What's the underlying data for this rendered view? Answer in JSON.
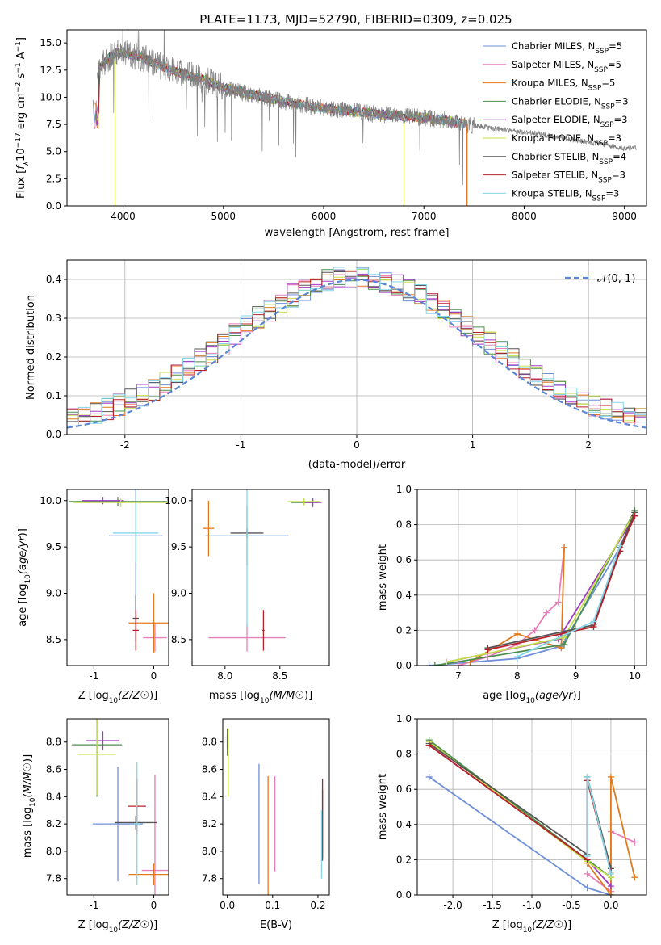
{
  "title": "PLATE=1173, MJD=52790, FIBERID=0309, z=0.025",
  "colors": {
    "Chabrier MILES": "#6f8fd8",
    "Salpeter MILES": "#e87fb8",
    "Kroupa MILES": "#e07a1e",
    "Chabrier ELODIE": "#4c8f4c",
    "Salpeter ELODIE": "#a23ac4",
    "Kroupa ELODIE": "#c6e04a",
    "Chabrier STELIB": "#555555",
    "Salpeter STELIB": "#b5202a",
    "Kroupa STELIB": "#86d6e8",
    "gauss": "#5b86d6",
    "data": "#808080"
  },
  "chart_data": [
    {
      "type": "line",
      "xlabel": "wavelength [Angstrom, rest frame]",
      "ylabel": "Flux [f_λ 10^-17 erg cm^-2 s^-1 A^-1]",
      "xlim": [
        3440,
        9220
      ],
      "ylim": [
        0,
        16.2
      ],
      "xticks": [
        4000,
        5000,
        6000,
        7000,
        8000,
        9000
      ],
      "yticks": [
        0.0,
        2.5,
        5.0,
        7.5,
        10.0,
        12.5,
        15.0
      ],
      "legend": [
        {
          "label": "Chabrier MILES, N",
          "sub": "SSP",
          "suffix": "=5"
        },
        {
          "label": "Salpeter MILES, N",
          "sub": "SSP",
          "suffix": "=5"
        },
        {
          "label": "Kroupa MILES, N",
          "sub": "SSP",
          "suffix": "=5"
        },
        {
          "label": "Chabrier ELODIE, N",
          "sub": "SSP",
          "suffix": "=3"
        },
        {
          "label": "Salpeter ELODIE, N",
          "sub": "SSP",
          "suffix": "=3"
        },
        {
          "label": "Kroupa ELODIE, N",
          "sub": "SSP",
          "suffix": "=3"
        },
        {
          "label": "Chabrier STELIB, N",
          "sub": "SSP",
          "suffix": "=4"
        },
        {
          "label": "Salpeter STELIB, N",
          "sub": "SSP",
          "suffix": "=3"
        },
        {
          "label": "Kroupa STELIB, N",
          "sub": "SSP",
          "suffix": "=3"
        }
      ],
      "continuum": [
        [
          3750,
          12.6
        ],
        [
          3850,
          13.6
        ],
        [
          3950,
          14.2
        ],
        [
          4050,
          14.0
        ],
        [
          4200,
          13.6
        ],
        [
          4400,
          12.8
        ],
        [
          4600,
          12.2
        ],
        [
          4800,
          11.6
        ],
        [
          5000,
          10.9
        ],
        [
          5200,
          10.4
        ],
        [
          5500,
          9.8
        ],
        [
          5800,
          9.3
        ],
        [
          6000,
          9.0
        ],
        [
          6300,
          8.7
        ],
        [
          6600,
          8.4
        ],
        [
          6900,
          8.2
        ],
        [
          7200,
          7.9
        ],
        [
          7500,
          7.4
        ],
        [
          7800,
          7.0
        ],
        [
          8100,
          6.7
        ],
        [
          8400,
          6.2
        ],
        [
          8700,
          5.8
        ],
        [
          9000,
          5.3
        ]
      ],
      "model_range": [
        3700,
        7430
      ],
      "data_range": [
        3740,
        9120
      ]
    },
    {
      "type": "histogram",
      "xlabel": "(data-model)/error",
      "ylabel": "Normed distribution",
      "xlim": [
        -2.5,
        2.5
      ],
      "ylim": [
        0,
        0.45
      ],
      "xticks": [
        -2,
        -1,
        0,
        1,
        2
      ],
      "yticks": [
        0.0,
        0.1,
        0.2,
        0.3,
        0.4
      ],
      "grid": true,
      "legend": "𝒩(0, 1)",
      "bins": 50,
      "gaussian": {
        "mu": 0,
        "sigma": 1
      }
    },
    {
      "type": "errorbar",
      "xlabel": "Z [log10(Z/Z☉)]",
      "ylabel": "age  [log10(age/yr)]",
      "xlim": [
        -1.45,
        0.25
      ],
      "ylim": [
        8.22,
        10.12
      ],
      "xticks": [
        -1,
        0
      ],
      "yticks": [
        8.5,
        9.0,
        9.5,
        10.0
      ],
      "points": [
        {
          "model": "Chabrier MILES",
          "x": -0.3,
          "y": 9.62,
          "xerr": 0.45,
          "yerr": 0.98
        },
        {
          "model": "Salpeter MILES",
          "x": 0.02,
          "y": 8.52,
          "xerr": 0.2,
          "yerr": 0.15
        },
        {
          "model": "Kroupa MILES",
          "x": 0.0,
          "y": 8.68,
          "xerr": 0.42,
          "yerr": 0.32
        },
        {
          "model": "Chabrier ELODIE",
          "x": -0.6,
          "y": 9.99,
          "xerr": 0.82,
          "yerr": 0.05
        },
        {
          "model": "Salpeter ELODIE",
          "x": -0.85,
          "y": 10.0,
          "xerr": 0.35,
          "yerr": 0.04
        },
        {
          "model": "Kroupa ELODIE",
          "x": -0.55,
          "y": 9.98,
          "xerr": 0.8,
          "yerr": 0.05
        },
        {
          "model": "Chabrier STELIB",
          "x": -0.3,
          "y": 8.73,
          "xerr": 0.05,
          "yerr": 0.25
        },
        {
          "model": "Salpeter STELIB",
          "x": -0.3,
          "y": 8.6,
          "xerr": 0.05,
          "yerr": 0.22
        },
        {
          "model": "Kroupa STELIB",
          "x": -0.3,
          "y": 9.65,
          "xerr": 0.38,
          "yerr": 0.32
        }
      ]
    },
    {
      "type": "errorbar",
      "xlabel": "mass [log10(M/M☉)]",
      "ylabel": "",
      "xlim": [
        7.7,
        8.95
      ],
      "ylim": [
        8.22,
        10.12
      ],
      "xticks": [
        8.0,
        8.5
      ],
      "yticks": [
        8.5,
        9.0,
        9.5,
        10.0
      ],
      "points": [
        {
          "model": "Chabrier MILES",
          "x": 8.2,
          "y": 9.62,
          "xerr": 0.38,
          "yerr": 0.32
        },
        {
          "model": "Salpeter MILES",
          "x": 8.2,
          "y": 8.52,
          "xerr": 0.35,
          "yerr": 0.15
        },
        {
          "model": "Kroupa MILES",
          "x": 7.85,
          "y": 9.7,
          "xerr": 0.05,
          "yerr": 0.3
        },
        {
          "model": "Chabrier ELODIE",
          "x": 8.72,
          "y": 9.98,
          "xerr": 0.12,
          "yerr": 0.03
        },
        {
          "model": "Salpeter ELODIE",
          "x": 8.8,
          "y": 9.98,
          "xerr": 0.08,
          "yerr": 0.05
        },
        {
          "model": "Kroupa ELODIE",
          "x": 8.72,
          "y": 9.99,
          "xerr": 0.15,
          "yerr": 0.04
        },
        {
          "model": "Chabrier STELIB",
          "x": 8.2,
          "y": 9.65,
          "xerr": 0.15,
          "yerr": 0.05
        },
        {
          "model": "Salpeter STELIB",
          "x": 8.35,
          "y": 8.6,
          "xerr": 0.01,
          "yerr": 0.22
        },
        {
          "model": "Kroupa STELIB",
          "x": 8.2,
          "y": 9.62,
          "xerr": 0.02,
          "yerr": 0.98
        }
      ]
    },
    {
      "type": "line",
      "xlabel": "age  [log10(age/yr)]",
      "ylabel": "mass weight",
      "xlim": [
        6.3,
        10.2
      ],
      "ylim": [
        0,
        1.0
      ],
      "xticks": [
        7,
        8,
        9,
        10
      ],
      "yticks": [
        0.0,
        0.2,
        0.4,
        0.6,
        0.8,
        1.0
      ],
      "grid": true,
      "series": [
        {
          "model": "Chabrier MILES",
          "x": [
            6.5,
            8.0,
            8.75,
            9.75,
            10.0
          ],
          "y": [
            0.0,
            0.04,
            0.11,
            0.67,
            0.87
          ]
        },
        {
          "model": "Salpeter MILES",
          "x": [
            7.0,
            7.5,
            8.0,
            8.3,
            8.5,
            8.7,
            8.8
          ],
          "y": [
            0.0,
            0.05,
            0.12,
            0.2,
            0.3,
            0.36,
            0.67
          ]
        },
        {
          "model": "Kroupa MILES",
          "x": [
            7.2,
            8.0,
            8.75,
            8.8
          ],
          "y": [
            0.02,
            0.18,
            0.1,
            0.67
          ]
        },
        {
          "model": "Chabrier ELODIE",
          "x": [
            6.6,
            8.8,
            10.0
          ],
          "y": [
            0.0,
            0.12,
            0.88
          ]
        },
        {
          "model": "Salpeter ELODIE",
          "x": [
            6.8,
            8.7,
            10.0
          ],
          "y": [
            0.02,
            0.15,
            0.85
          ]
        },
        {
          "model": "Kroupa ELODIE",
          "x": [
            6.8,
            8.8,
            10.0
          ],
          "y": [
            0.02,
            0.16,
            0.87
          ]
        },
        {
          "model": "Chabrier STELIB",
          "x": [
            7.5,
            9.3,
            9.75,
            10.0
          ],
          "y": [
            0.1,
            0.23,
            0.67,
            0.87
          ]
        },
        {
          "model": "Salpeter STELIB",
          "x": [
            7.5,
            9.3,
            9.75,
            10.0
          ],
          "y": [
            0.09,
            0.22,
            0.65,
            0.85
          ]
        },
        {
          "model": "Kroupa STELIB",
          "x": [
            8.0,
            9.3,
            9.75
          ],
          "y": [
            0.05,
            0.25,
            0.68
          ]
        }
      ]
    },
    {
      "type": "errorbar",
      "xlabel": "Z [log10(Z/Z☉)]",
      "ylabel": "mass [log10(M/M☉)]",
      "xlim": [
        -1.45,
        0.25
      ],
      "ylim": [
        7.68,
        8.97
      ],
      "xticks": [
        -1,
        0
      ],
      "yticks": [
        7.8,
        8.0,
        8.2,
        8.4,
        8.6,
        8.8
      ],
      "points": [
        {
          "model": "Chabrier MILES",
          "x": -0.6,
          "y": 8.2,
          "xerr": 0.42,
          "yerr": 0.42
        },
        {
          "model": "Salpeter MILES",
          "x": 0.02,
          "y": 7.86,
          "xerr": 0.22,
          "yerr": 0.7
        },
        {
          "model": "Kroupa MILES",
          "x": 0.0,
          "y": 7.83,
          "xerr": 0.42,
          "yerr": 0.08
        },
        {
          "model": "Chabrier ELODIE",
          "x": -0.95,
          "y": 8.78,
          "xerr": 0.42,
          "yerr": 0.38
        },
        {
          "model": "Salpeter ELODIE",
          "x": -0.85,
          "y": 8.81,
          "xerr": 0.28,
          "yerr": 0.07
        },
        {
          "model": "Kroupa ELODIE",
          "x": -0.95,
          "y": 8.71,
          "xerr": 0.32,
          "yerr": 0.3
        },
        {
          "model": "Chabrier STELIB",
          "x": -0.3,
          "y": 8.21,
          "xerr": 0.35,
          "yerr": 0.05
        },
        {
          "model": "Salpeter STELIB",
          "x": -0.28,
          "y": 8.33,
          "xerr": 0.15,
          "yerr": 0.2
        },
        {
          "model": "Kroupa STELIB",
          "x": -0.28,
          "y": 8.2,
          "xerr": 0.05,
          "yerr": 0.45
        }
      ]
    },
    {
      "type": "errorbar",
      "xlabel": "E(B-V)",
      "ylabel": "",
      "xlim": [
        -0.01,
        0.225
      ],
      "ylim": [
        7.68,
        8.97
      ],
      "xticks": [
        0.0,
        0.1,
        0.2
      ],
      "yticks": [
        7.8,
        8.0,
        8.2,
        8.4,
        8.6,
        8.8
      ],
      "points": [
        {
          "model": "Chabrier MILES",
          "x": 0.07,
          "y": 8.2,
          "xerr": 0,
          "yerr": 0.44
        },
        {
          "model": "Salpeter MILES",
          "x": 0.105,
          "y": 8.2,
          "xerr": 0,
          "yerr": 0.35
        },
        {
          "model": "Kroupa MILES",
          "x": 0.09,
          "y": 8.1,
          "xerr": 0,
          "yerr": 0.45
        },
        {
          "model": "Chabrier ELODIE",
          "x": 0.0,
          "y": 8.8,
          "xerr": 0,
          "yerr": 0.1
        },
        {
          "model": "Salpeter ELODIE",
          "x": 0.0,
          "y": 8.8,
          "xerr": 0,
          "yerr": 0.05
        },
        {
          "model": "Kroupa ELODIE",
          "x": 0.002,
          "y": 8.65,
          "xerr": 0,
          "yerr": 0.25
        },
        {
          "model": "Chabrier STELIB",
          "x": 0.21,
          "y": 8.2,
          "xerr": 0,
          "yerr": 0.25
        },
        {
          "model": "Salpeter STELIB",
          "x": 0.21,
          "y": 8.23,
          "xerr": 0,
          "yerr": 0.3
        },
        {
          "model": "Kroupa STELIB",
          "x": 0.208,
          "y": 8.05,
          "xerr": 0,
          "yerr": 0.25
        }
      ]
    },
    {
      "type": "line",
      "xlabel": "Z [log10(Z/Z☉)]",
      "ylabel": "mass weight",
      "xlim": [
        -2.45,
        0.45
      ],
      "ylim": [
        0,
        1.0
      ],
      "xticks": [
        -2.0,
        -1.5,
        -1.0,
        -0.5,
        0.0
      ],
      "yticks": [
        0.0,
        0.2,
        0.4,
        0.6,
        0.8,
        1.0
      ],
      "grid": true,
      "series": [
        {
          "model": "Chabrier MILES",
          "x": [
            -2.3,
            -0.3,
            0.0
          ],
          "y": [
            0.67,
            0.04,
            0.0
          ]
        },
        {
          "model": "Salpeter MILES",
          "x": [
            -0.3,
            0.0,
            0.0,
            0.3
          ],
          "y": [
            0.12,
            0.02,
            0.36,
            0.3
          ]
        },
        {
          "model": "Kroupa MILES",
          "x": [
            -0.3,
            0.0,
            0.0,
            0.3
          ],
          "y": [
            0.18,
            0.0,
            0.67,
            0.1
          ]
        },
        {
          "model": "Chabrier ELODIE",
          "x": [
            -2.3,
            -0.3,
            0.0
          ],
          "y": [
            0.88,
            0.2,
            0.1
          ]
        },
        {
          "model": "Salpeter ELODIE",
          "x": [
            -2.3,
            -0.3,
            0.0
          ],
          "y": [
            0.85,
            0.2,
            0.05
          ]
        },
        {
          "model": "Kroupa ELODIE",
          "x": [
            -2.3,
            -0.3,
            0.0
          ],
          "y": [
            0.87,
            0.19,
            0.1
          ]
        },
        {
          "model": "Chabrier STELIB",
          "x": [
            -2.3,
            -0.3,
            -0.3,
            0.0
          ],
          "y": [
            0.86,
            0.23,
            0.67,
            0.15
          ]
        },
        {
          "model": "Salpeter STELIB",
          "x": [
            -2.3,
            -0.3,
            -0.3,
            0.0
          ],
          "y": [
            0.85,
            0.2,
            0.65,
            0.13
          ]
        },
        {
          "model": "Kroupa STELIB",
          "x": [
            -0.3,
            -0.3,
            0.0
          ],
          "y": [
            0.22,
            0.67,
            0.12
          ]
        }
      ]
    }
  ]
}
